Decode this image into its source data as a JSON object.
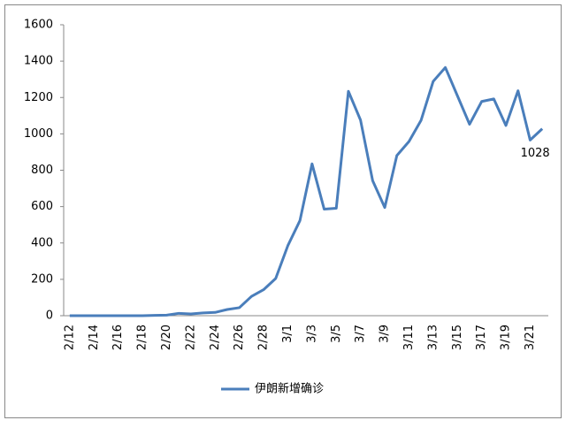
{
  "chart_data": {
    "type": "line",
    "categories": [
      "2/12",
      null,
      "2/14",
      null,
      "2/16",
      null,
      "2/18",
      null,
      "2/20",
      null,
      "2/22",
      null,
      "2/24",
      null,
      "2/26",
      null,
      "2/28",
      null,
      "3/1",
      null,
      "3/3",
      null,
      "3/5",
      null,
      "3/7",
      null,
      "3/9",
      null,
      "3/11",
      null,
      "3/13",
      null,
      "3/15",
      null,
      "3/17",
      null,
      "3/19",
      null,
      "3/21",
      null
    ],
    "series": [
      {
        "name": "伊朗新增确诊",
        "color": "#4a7ebb",
        "values": [
          0,
          0,
          0,
          0,
          0,
          0,
          0,
          2,
          3,
          13,
          10,
          15,
          18,
          34,
          44,
          106,
          143,
          205,
          385,
          523,
          835,
          586,
          591,
          1234,
          1076,
          743,
          595,
          881,
          958,
          1075,
          1289,
          1365,
          1209,
          1053,
          1178,
          1192,
          1046,
          1237,
          966,
          1028
        ]
      }
    ],
    "ylim": [
      0,
      1600
    ],
    "yticks": [
      0,
      200,
      400,
      600,
      800,
      1000,
      1200,
      1400,
      1600
    ],
    "grid": false,
    "legend": "bottom"
  }
}
